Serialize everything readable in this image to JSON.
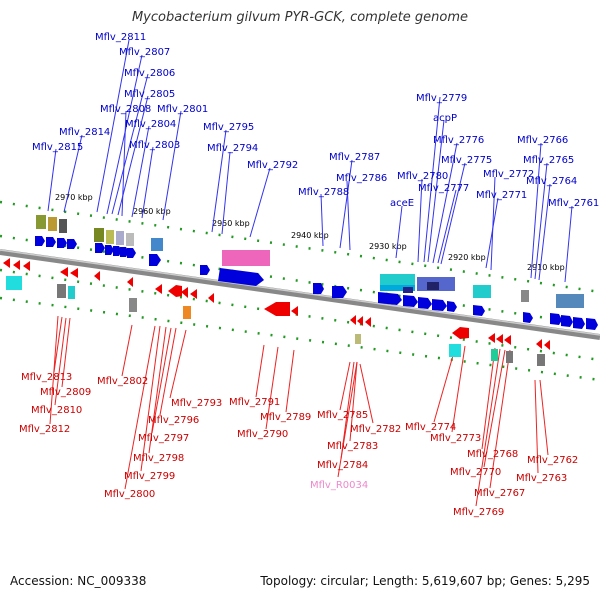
{
  "title": "Mycobacterium gilvum PYR-GCK, complete genome",
  "footer": {
    "accession": "Accession: NC_009338",
    "summary": "Topology: circular; Length: 5,619,607 bp; Genes: 5,295"
  },
  "colors": {
    "forward": "#0000dd",
    "reverse": "#ee0000",
    "rna": "#ee88cc",
    "backbone": "#999999",
    "tick": "#229922"
  },
  "scale_labels": [
    "2970 kbp",
    "2960 kbp",
    "2950 kbp",
    "2940 kbp",
    "2930 kbp",
    "2920 kbp",
    "2910 kbp"
  ],
  "forward_genes": [
    "Mflv_2811",
    "Mflv_2807",
    "Mflv_2806",
    "Mflv_2805",
    "Mflv_2808",
    "Mflv_2801",
    "Mflv_2804",
    "Mflv_2814",
    "Mflv_2803",
    "Mflv_2815",
    "Mflv_2795",
    "Mflv_2794",
    "Mflv_2792",
    "Mflv_2787",
    "Mflv_2786",
    "Mflv_2788",
    "Mflv_2779",
    "acpP",
    "Mflv_2776",
    "Mflv_2775",
    "Mflv_2780",
    "Mflv_2772",
    "Mflv_2777",
    "aceE",
    "Mflv_2771",
    "Mflv_2766",
    "Mflv_2765",
    "Mflv_2764",
    "Mflv_2761"
  ],
  "reverse_genes": [
    "Mflv_2813",
    "Mflv_2809",
    "Mflv_2810",
    "Mflv_2812",
    "Mflv_2802",
    "Mflv_2793",
    "Mflv_2796",
    "Mflv_2797",
    "Mflv_2798",
    "Mflv_2799",
    "Mflv_2800",
    "Mflv_2791",
    "Mflv_2790",
    "Mflv_2789",
    "Mflv_2785",
    "Mflv_2782",
    "Mflv_2783",
    "Mflv_2784",
    "Mflv_R0034",
    "Mflv_2774",
    "Mflv_2773",
    "Mflv_2768",
    "Mflv_2770",
    "Mflv_2767",
    "Mflv_2769",
    "Mflv_2762",
    "Mflv_2763"
  ]
}
